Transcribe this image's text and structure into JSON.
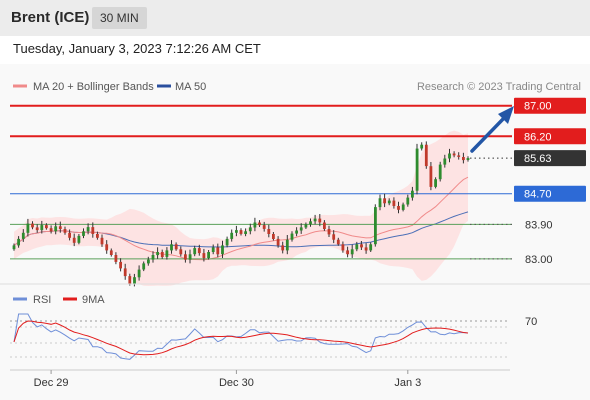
{
  "header": {
    "title": "Brent (ICE)",
    "timeframe": "30 MIN"
  },
  "datetime": "Tuesday, January 3, 2023 7:12:26 AM CET",
  "legend": {
    "ma20_label": "MA 20 + Bollinger Bands",
    "ma50_label": "MA 50",
    "rsi_label": "RSI",
    "ma9_label": "9MA",
    "copyright": "Research © 2023 Trading Central"
  },
  "colors": {
    "resistance": "#e21d1d",
    "support": "#5aa05a",
    "pivot": "#2d6ad6",
    "price_box": "#333333",
    "bollinger_fill": "#fde3e3",
    "ma20": "#f08a8a",
    "ma50": "#4b6fb7",
    "candle_up": "#2e8b2e",
    "candle_down": "#c0392b",
    "rsi": "#6f8fd8",
    "rsi_ma": "#e21d1d",
    "arrow": "#2356a6"
  },
  "chart_data": {
    "type": "candlestick",
    "instrument": "Brent (ICE)",
    "interval": "30 MIN",
    "ylim": [
      82.5,
      87.2
    ],
    "x_ticks": [
      "Dec 29",
      "Dec 30",
      "Jan 3"
    ],
    "levels": [
      {
        "value": 87.0,
        "label": "87.00",
        "kind": "target"
      },
      {
        "value": 86.2,
        "label": "86.20",
        "kind": "resistance"
      },
      {
        "value": 85.63,
        "label": "85.63",
        "kind": "last"
      },
      {
        "value": 84.7,
        "label": "84.70",
        "kind": "pivot"
      },
      {
        "value": 83.9,
        "label": "83.90",
        "kind": "support"
      },
      {
        "value": 83.0,
        "label": "83.00",
        "kind": "support"
      }
    ],
    "closes": [
      83.35,
      83.52,
      83.68,
      83.92,
      83.82,
      83.75,
      83.88,
      83.8,
      83.72,
      83.85,
      83.78,
      83.68,
      83.55,
      83.42,
      83.6,
      83.72,
      83.83,
      83.65,
      83.55,
      83.38,
      83.22,
      83.1,
      82.92,
      82.75,
      82.55,
      82.35,
      82.52,
      82.72,
      82.88,
      82.98,
      83.1,
      83.18,
      83.05,
      83.22,
      83.38,
      83.25,
      83.12,
      82.98,
      83.12,
      83.28,
      83.15,
      83.02,
      83.18,
      83.3,
      83.12,
      83.35,
      83.52,
      83.68,
      83.75,
      83.65,
      83.72,
      83.82,
      83.95,
      83.88,
      83.78,
      83.65,
      83.52,
      83.35,
      83.22,
      83.5,
      83.66,
      83.74,
      83.82,
      83.9,
      83.98,
      84.05,
      83.95,
      83.78,
      83.64,
      83.5,
      83.38,
      83.22,
      83.12,
      83.25,
      83.38,
      83.3,
      83.22,
      83.38,
      84.35,
      84.58,
      84.45,
      84.52,
      84.38,
      84.28,
      84.42,
      84.6,
      84.78,
      85.88,
      85.98,
      85.42,
      84.88,
      85.08,
      85.46,
      85.62,
      85.75,
      85.7,
      85.66,
      85.58,
      85.63
    ],
    "rsi": {
      "name": "RSI",
      "ma_name": "9MA",
      "level_label": "70"
    }
  }
}
